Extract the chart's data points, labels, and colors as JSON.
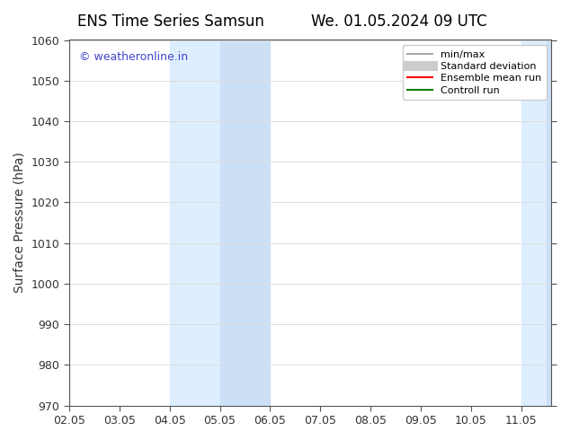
{
  "title_left": "ENS Time Series Samsun",
  "title_right": "We. 01.05.2024 09 UTC",
  "ylabel": "Surface Pressure (hPa)",
  "ylim": [
    970,
    1060
  ],
  "yticks": [
    970,
    980,
    990,
    1000,
    1010,
    1020,
    1030,
    1040,
    1050,
    1060
  ],
  "xtick_positions": [
    2,
    3,
    4,
    5,
    6,
    7,
    8,
    9,
    10,
    11
  ],
  "xtick_labels": [
    "02.05",
    "03.05",
    "04.05",
    "05.05",
    "06.05",
    "07.05",
    "08.05",
    "09.05",
    "10.05",
    "11.05"
  ],
  "watermark": "© weatheronline.in",
  "watermark_color": "#4444cc",
  "shaded_bands": [
    {
      "xstart": 4.0,
      "xend": 5.0,
      "color": "#ddeeff"
    },
    {
      "xstart": 5.0,
      "xend": 6.0,
      "color": "#cce0f5"
    },
    {
      "xstart": 11.0,
      "xend": 11.5,
      "color": "#ddeeff"
    },
    {
      "xstart": 11.5,
      "xend": 12.0,
      "color": "#cce0f5"
    }
  ],
  "legend_entries": [
    {
      "label": "min/max",
      "color": "#aaaaaa",
      "lw": 1.5,
      "ls": "-"
    },
    {
      "label": "Standard deviation",
      "color": "#cccccc",
      "lw": 8,
      "ls": "-"
    },
    {
      "label": "Ensemble mean run",
      "color": "red",
      "lw": 1.5,
      "ls": "-"
    },
    {
      "label": "Controll run",
      "color": "green",
      "lw": 1.5,
      "ls": "-"
    }
  ],
  "background_color": "#ffffff",
  "grid_color": "#dddddd",
  "spine_color": "#555555",
  "tick_color": "#333333",
  "title_fontsize": 12,
  "label_fontsize": 10,
  "tick_fontsize": 9,
  "xlim": [
    2,
    11.6
  ]
}
